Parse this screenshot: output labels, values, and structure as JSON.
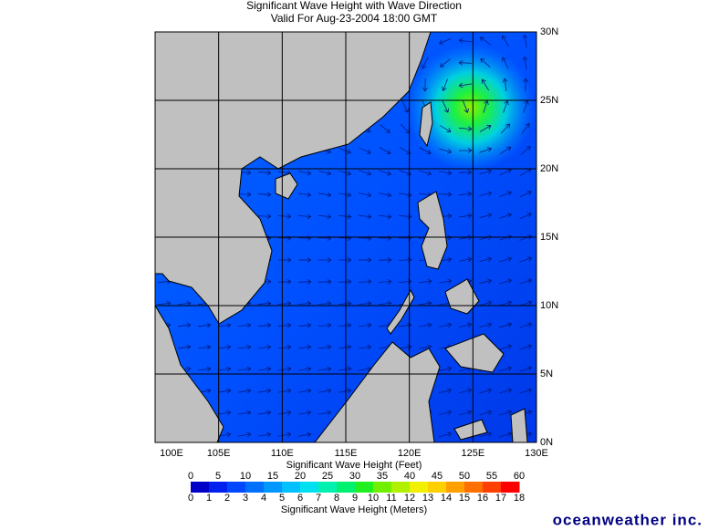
{
  "title": "Significant Wave Height with Wave Direction",
  "subtitle": "Valid For Aug-23-2004 18:00 GMT",
  "map": {
    "lat_labels": [
      "30N",
      "25N",
      "20N",
      "15N",
      "10N",
      "5N",
      "0N"
    ],
    "lon_labels": [
      "100E",
      "105E",
      "110E",
      "115E",
      "120E",
      "125E",
      "130E"
    ]
  },
  "legend": {
    "feet_title": "Significant Wave Height (Feet)",
    "feet_ticks": [
      0,
      5,
      10,
      15,
      20,
      25,
      30,
      35,
      40,
      45,
      50,
      55,
      60
    ],
    "meters_ticks": [
      0,
      1,
      2,
      3,
      4,
      5,
      6,
      7,
      8,
      9,
      10,
      11,
      12,
      13,
      14,
      15,
      16,
      17,
      18
    ],
    "meters_title": "Significant Wave Height (Meters)",
    "colors": [
      "#0000c8",
      "#0020f0",
      "#0048ff",
      "#0070ff",
      "#0098ff",
      "#00c0ff",
      "#00e0f0",
      "#00f0b0",
      "#00f070",
      "#20f020",
      "#70f000",
      "#b0f000",
      "#f0f000",
      "#ffd000",
      "#ffa000",
      "#ff7000",
      "#ff4000",
      "#ff0000"
    ]
  },
  "brand": "oceanweather inc."
}
